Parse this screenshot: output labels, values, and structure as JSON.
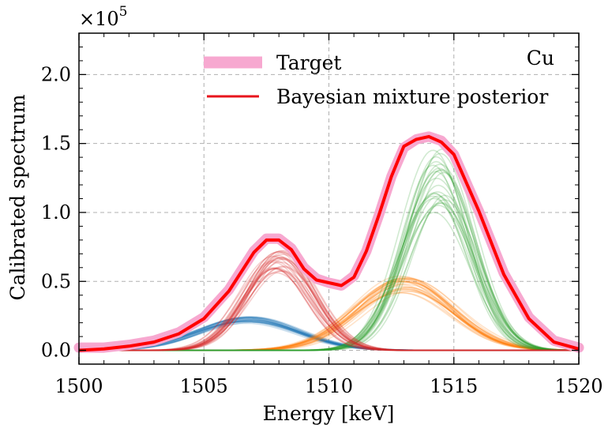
{
  "chart_data": {
    "type": "line",
    "xlabel": "Energy [keV]",
    "ylabel": "Calibrated spectrum",
    "y_multiplier_label": "×10",
    "y_multiplier_exponent": "5",
    "annotation": "Cu",
    "xlim": [
      1500,
      1520
    ],
    "ylim": [
      -0.1,
      2.3
    ],
    "x_ticks": [
      1500,
      1505,
      1510,
      1515,
      1520
    ],
    "x_tick_labels": [
      "1500",
      "1505",
      "1510",
      "1515",
      "1520"
    ],
    "y_ticks": [
      0.0,
      0.5,
      1.0,
      1.5,
      2.0
    ],
    "y_tick_labels": [
      "0.0",
      "0.5",
      "1.0",
      "1.5",
      "2.0"
    ],
    "grid": true,
    "legend_position": "top-center",
    "legend": [
      {
        "label": "Target",
        "color": "#f7a8d0"
      },
      {
        "label": "Bayesian mixture posterior",
        "color": "#e8141c"
      }
    ],
    "x": [
      1500,
      1501,
      1502,
      1503,
      1504,
      1505,
      1506,
      1507,
      1507.5,
      1508,
      1508.5,
      1509,
      1509.5,
      1510,
      1510.5,
      1511,
      1511.5,
      1512,
      1512.5,
      1513,
      1513.5,
      1514,
      1514.5,
      1515,
      1516,
      1517,
      1518,
      1519,
      1520
    ],
    "series": [
      {
        "name": "Target",
        "color": "#f7a8d0",
        "values": [
          0.02,
          0.02,
          0.04,
          0.07,
          0.13,
          0.24,
          0.44,
          0.72,
          0.81,
          0.81,
          0.74,
          0.6,
          0.52,
          0.49,
          0.47,
          0.54,
          0.72,
          0.98,
          1.26,
          1.47,
          1.53,
          1.55,
          1.52,
          1.42,
          1.01,
          0.56,
          0.24,
          0.07,
          0.02
        ]
      },
      {
        "name": "Bayesian mixture posterior",
        "color": "#ff0000",
        "values": [
          0.0,
          0.01,
          0.03,
          0.06,
          0.12,
          0.23,
          0.43,
          0.71,
          0.8,
          0.8,
          0.73,
          0.59,
          0.51,
          0.49,
          0.47,
          0.53,
          0.72,
          0.98,
          1.26,
          1.48,
          1.53,
          1.55,
          1.51,
          1.42,
          1.01,
          0.55,
          0.23,
          0.06,
          0.01
        ]
      }
    ],
    "components": [
      {
        "name": "blue component",
        "color": "#1f77b4",
        "center": 1506.8,
        "sigma": 2.0,
        "amplitude": 0.22,
        "spread": 0.05
      },
      {
        "name": "red component",
        "color": "#d62728",
        "center": 1508.0,
        "sigma": 1.35,
        "amplitude": 0.64,
        "spread": 0.06
      },
      {
        "name": "orange component",
        "color": "#ff7f0e",
        "center": 1513.0,
        "sigma": 1.9,
        "amplitude": 0.48,
        "spread": 0.06
      },
      {
        "name": "green component",
        "color": "#2ca02c",
        "center": 1514.4,
        "sigma": 1.35,
        "amplitude": 1.2,
        "spread": 0.1
      }
    ]
  }
}
